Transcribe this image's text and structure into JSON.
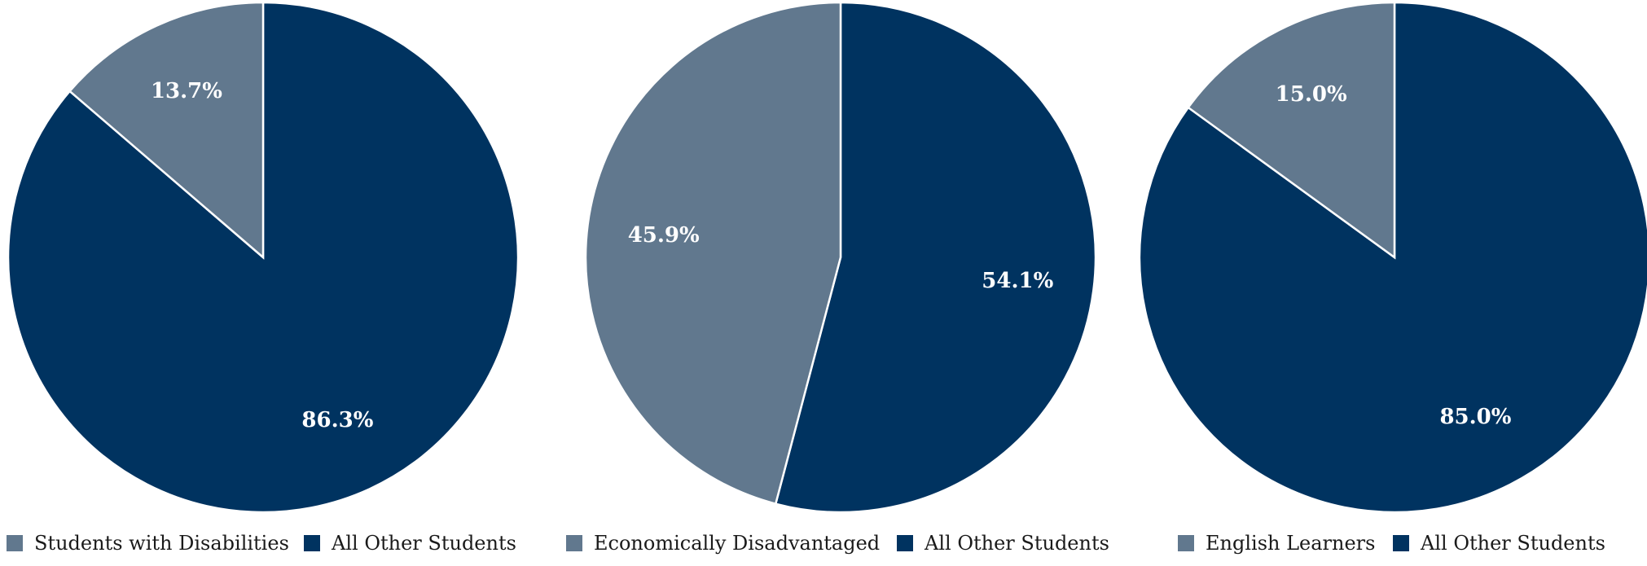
{
  "colors": {
    "subgroup": "#61788e",
    "others": "#003360",
    "background": "#ffffff"
  },
  "chart_data": [
    {
      "type": "pie",
      "slices": [
        {
          "label": "Students with Disabilities",
          "value": 13.7,
          "display": "13.7%",
          "color": "#61788e"
        },
        {
          "label": "All Other Students",
          "value": 86.3,
          "display": "86.3%",
          "color": "#003360"
        }
      ],
      "start": "12 o'clock",
      "direction": "counterclockwise for first slice",
      "legend": [
        "Students with Disabilities",
        "All Other Students"
      ],
      "legend_position": "bottom"
    },
    {
      "type": "pie",
      "slices": [
        {
          "label": "Economically Disadvantaged",
          "value": 45.9,
          "display": "45.9%",
          "color": "#61788e"
        },
        {
          "label": "All Other Students",
          "value": 54.1,
          "display": "54.1%",
          "color": "#003360"
        }
      ],
      "start": "12 o'clock",
      "direction": "counterclockwise for first slice",
      "legend": [
        "Economically Disadvantaged",
        "All Other Students"
      ],
      "legend_position": "bottom"
    },
    {
      "type": "pie",
      "slices": [
        {
          "label": "English Learners",
          "value": 15.0,
          "display": "15.0%",
          "color": "#61788e"
        },
        {
          "label": "All Other Students",
          "value": 85.0,
          "display": "85.0%",
          "color": "#003360"
        }
      ],
      "start": "12 o'clock",
      "direction": "counterclockwise for first slice",
      "legend": [
        "English Learners",
        "All Other Students"
      ],
      "legend_position": "bottom"
    }
  ]
}
